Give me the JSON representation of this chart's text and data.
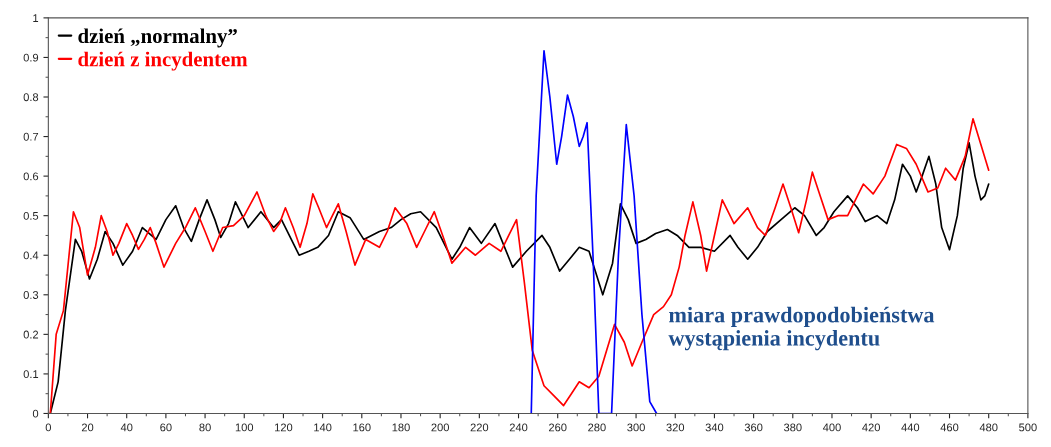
{
  "chart_data": {
    "type": "line",
    "xlim": [
      0,
      500
    ],
    "xticks": [
      0,
      20,
      40,
      60,
      80,
      100,
      120,
      140,
      160,
      180,
      200,
      220,
      240,
      260,
      280,
      300,
      320,
      340,
      360,
      380,
      400,
      420,
      440,
      460,
      480,
      500
    ],
    "ylim": [
      0,
      1
    ],
    "yticks": [
      0,
      0.1,
      0.2,
      0.3,
      0.4,
      0.5,
      0.6,
      0.7,
      0.8,
      0.9,
      1
    ],
    "annotations": [
      "miara prawdopodobieństwa wystąpienia incydentu"
    ],
    "grid": false,
    "legend": "top left",
    "line_style": "solid",
    "marker": "none",
    "series": [
      {
        "name": "dzień „normalny”",
        "color": "#000000",
        "x": [
          1,
          5,
          8.7,
          13.8,
          17,
          21,
          25,
          29,
          33,
          38,
          43,
          48,
          55,
          60,
          65,
          69,
          73,
          77,
          81,
          85,
          88,
          92,
          95.5,
          102,
          108.5,
          115,
          119,
          123,
          128,
          133,
          137.5,
          143,
          148,
          154,
          161,
          169,
          175,
          180,
          185,
          190,
          198,
          206,
          210,
          215,
          221,
          228,
          237,
          244,
          252,
          256,
          261,
          266,
          271,
          276,
          283,
          288,
          292,
          296,
          300,
          305,
          310,
          316,
          321,
          327,
          333,
          340,
          348,
          352,
          357,
          362,
          367,
          374,
          381,
          386,
          392,
          396,
          401,
          408,
          413,
          417,
          423,
          428,
          432,
          436,
          440,
          443,
          446,
          449.5,
          453,
          456,
          460,
          464,
          467,
          470,
          473,
          476,
          478,
          480
        ],
        "values": [
          0,
          0.08,
          0.26,
          0.44,
          0.41,
          0.34,
          0.39,
          0.46,
          0.43,
          0.375,
          0.41,
          0.47,
          0.44,
          0.49,
          0.525,
          0.47,
          0.435,
          0.49,
          0.54,
          0.49,
          0.445,
          0.48,
          0.535,
          0.47,
          0.51,
          0.47,
          0.49,
          0.45,
          0.4,
          0.41,
          0.42,
          0.45,
          0.51,
          0.495,
          0.44,
          0.46,
          0.47,
          0.49,
          0.505,
          0.51,
          0.47,
          0.39,
          0.42,
          0.47,
          0.43,
          0.48,
          0.37,
          0.41,
          0.45,
          0.42,
          0.36,
          0.39,
          0.42,
          0.41,
          0.3,
          0.38,
          0.53,
          0.49,
          0.43,
          0.44,
          0.455,
          0.465,
          0.45,
          0.42,
          0.42,
          0.41,
          0.45,
          0.42,
          0.39,
          0.42,
          0.46,
          0.49,
          0.52,
          0.5,
          0.45,
          0.47,
          0.51,
          0.55,
          0.52,
          0.485,
          0.5,
          0.48,
          0.54,
          0.63,
          0.6,
          0.56,
          0.6,
          0.65,
          0.58,
          0.47,
          0.414,
          0.5,
          0.62,
          0.684,
          0.6,
          0.54,
          0.55,
          0.58
        ]
      },
      {
        "name": "dzień z incydentem",
        "color": "#ff0000",
        "x": [
          1,
          4,
          7.7,
          12.8,
          16,
          20,
          24,
          27,
          30,
          33,
          36,
          40,
          43,
          46,
          49,
          52,
          55,
          59,
          65,
          70,
          75,
          80,
          84,
          89,
          94.5,
          100,
          106.5,
          111,
          115,
          118,
          121,
          125,
          128.5,
          132,
          135,
          138,
          142,
          145,
          148,
          152,
          156.5,
          162,
          169,
          173,
          177,
          183,
          188,
          192,
          197,
          202,
          206,
          213,
          218,
          225,
          231,
          235,
          239,
          243,
          247,
          253,
          258,
          263,
          267,
          271,
          276,
          281,
          285,
          289,
          294,
          298,
          303,
          309,
          314,
          318,
          322,
          325,
          329,
          333,
          336,
          340,
          344,
          350,
          357,
          362,
          366,
          371,
          375,
          379,
          383,
          387,
          390,
          394,
          398,
          403,
          408,
          412,
          416,
          421,
          427,
          433,
          438,
          443,
          449,
          454,
          458,
          463,
          468,
          472,
          476,
          480
        ],
        "values": [
          0,
          0.2,
          0.26,
          0.51,
          0.47,
          0.35,
          0.42,
          0.5,
          0.46,
          0.4,
          0.43,
          0.48,
          0.45,
          0.415,
          0.44,
          0.47,
          0.43,
          0.37,
          0.43,
          0.47,
          0.52,
          0.46,
          0.41,
          0.47,
          0.475,
          0.5,
          0.56,
          0.5,
          0.46,
          0.48,
          0.52,
          0.47,
          0.42,
          0.48,
          0.555,
          0.52,
          0.47,
          0.5,
          0.53,
          0.46,
          0.375,
          0.44,
          0.42,
          0.46,
          0.52,
          0.48,
          0.42,
          0.46,
          0.51,
          0.44,
          0.38,
          0.42,
          0.4,
          0.43,
          0.41,
          0.45,
          0.49,
          0.33,
          0.16,
          0.07,
          0.045,
          0.02,
          0.05,
          0.08,
          0.065,
          0.094,
          0.16,
          0.225,
          0.18,
          0.12,
          0.18,
          0.25,
          0.27,
          0.3,
          0.37,
          0.45,
          0.535,
          0.45,
          0.36,
          0.45,
          0.54,
          0.48,
          0.52,
          0.47,
          0.45,
          0.52,
          0.58,
          0.52,
          0.457,
          0.54,
          0.61,
          0.55,
          0.49,
          0.5,
          0.5,
          0.54,
          0.58,
          0.555,
          0.6,
          0.68,
          0.67,
          0.63,
          0.56,
          0.57,
          0.62,
          0.59,
          0.65,
          0.745,
          0.68,
          0.615
        ]
      },
      {
        "color": "#0000ff",
        "x": [
          246.5,
          249,
          253,
          256,
          259.5,
          262,
          265,
          268,
          271,
          273,
          275,
          278,
          281,
          284,
          287.5,
          291,
          295,
          299,
          303,
          307,
          310.5
        ],
        "values": [
          0,
          0.55,
          0.917,
          0.8,
          0.63,
          0.7,
          0.805,
          0.75,
          0.675,
          0.7,
          0.735,
          0.4,
          0,
          null,
          0,
          0.4,
          0.73,
          0.55,
          0.25,
          0.03,
          0
        ]
      }
    ]
  }
}
